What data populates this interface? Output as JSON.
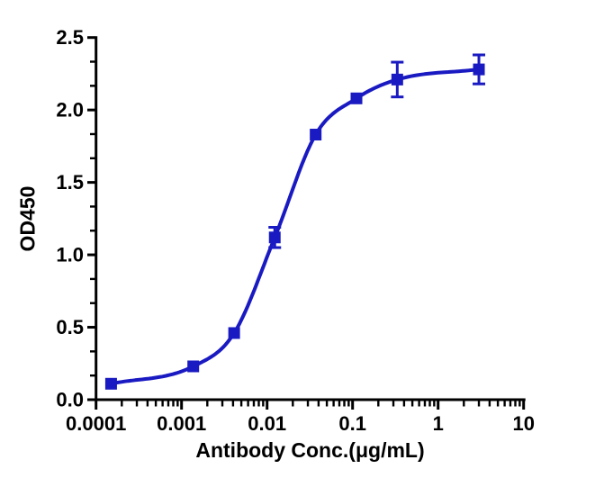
{
  "figure": {
    "background": "#ffffff",
    "accent_color": "#1a1ac2",
    "axis_color": "#000000"
  },
  "chart_data": {
    "type": "scatter",
    "title": "",
    "xlabel": "Antibody Conc.(μg/mL)",
    "ylabel": "OD450",
    "x_scale": "log10",
    "xlim": [
      0.0001,
      10
    ],
    "ylim": [
      0.0,
      2.5
    ],
    "x_tick_values": [
      0.0001,
      0.001,
      0.01,
      0.1,
      1,
      10
    ],
    "x_tick_labels": [
      "0.0001",
      "0.001",
      "0.01",
      "0.1",
      "1",
      "10"
    ],
    "y_tick_values": [
      0.0,
      0.5,
      1.0,
      1.5,
      2.0,
      2.5
    ],
    "y_tick_labels": [
      "0.0",
      "0.5",
      "1.0",
      "1.5",
      "2.0",
      "2.5"
    ],
    "grid": false,
    "legend": "none",
    "series": [
      {
        "name": "OD450",
        "marker": "filled-square",
        "color": "#1a1ac2",
        "line": "smooth sigmoid fit through points",
        "x": [
          0.00015,
          0.00137,
          0.00412,
          0.0123,
          0.037,
          0.111,
          0.333,
          3
        ],
        "y": [
          0.11,
          0.23,
          0.46,
          1.12,
          1.83,
          2.08,
          2.21,
          2.28
        ],
        "y_err": [
          0,
          0,
          0,
          0.07,
          0,
          0,
          0.12,
          0.1
        ]
      }
    ]
  }
}
